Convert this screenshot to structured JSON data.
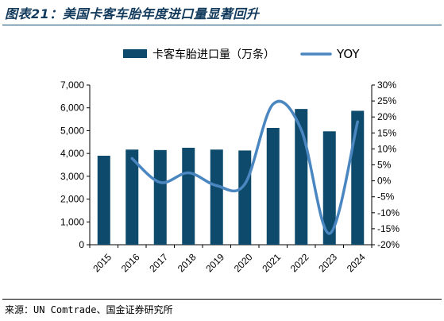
{
  "figure": {
    "title": "图表21：美国卡客车胎年度进口量显著回升",
    "source": "来源：UN Comtrade、国金证券研究所"
  },
  "colors": {
    "bar": "#0e4a6b",
    "line": "#4a86c0",
    "title": "#123a5c"
  },
  "chart_data": {
    "type": "bar+line",
    "categories": [
      "2015",
      "2016",
      "2017",
      "2018",
      "2019",
      "2020",
      "2021",
      "2022",
      "2023",
      "2024"
    ],
    "series": [
      {
        "name": "卡客车胎进口量（万条）",
        "type": "bar",
        "axis": "left",
        "values": [
          3900,
          4170,
          4150,
          4250,
          4170,
          4130,
          5120,
          5950,
          4970,
          5870
        ]
      },
      {
        "name": "YOY",
        "type": "line",
        "axis": "right",
        "unit": "%",
        "values": [
          null,
          7.0,
          -0.5,
          2.5,
          -1.5,
          -1.0,
          24.0,
          16.0,
          -16.5,
          18.5
        ]
      }
    ],
    "y_left": {
      "min": 0,
      "max": 7000,
      "ticks": [
        "0",
        "1,000",
        "2,000",
        "3,000",
        "4,000",
        "5,000",
        "6,000",
        "7,000"
      ]
    },
    "y_right": {
      "min": -20,
      "max": 30,
      "ticks": [
        "-20%",
        "-15%",
        "-10%",
        "-5%",
        "0%",
        "5%",
        "10%",
        "15%",
        "20%",
        "25%",
        "30%"
      ]
    },
    "legend": {
      "position": "top"
    },
    "grid": false
  }
}
